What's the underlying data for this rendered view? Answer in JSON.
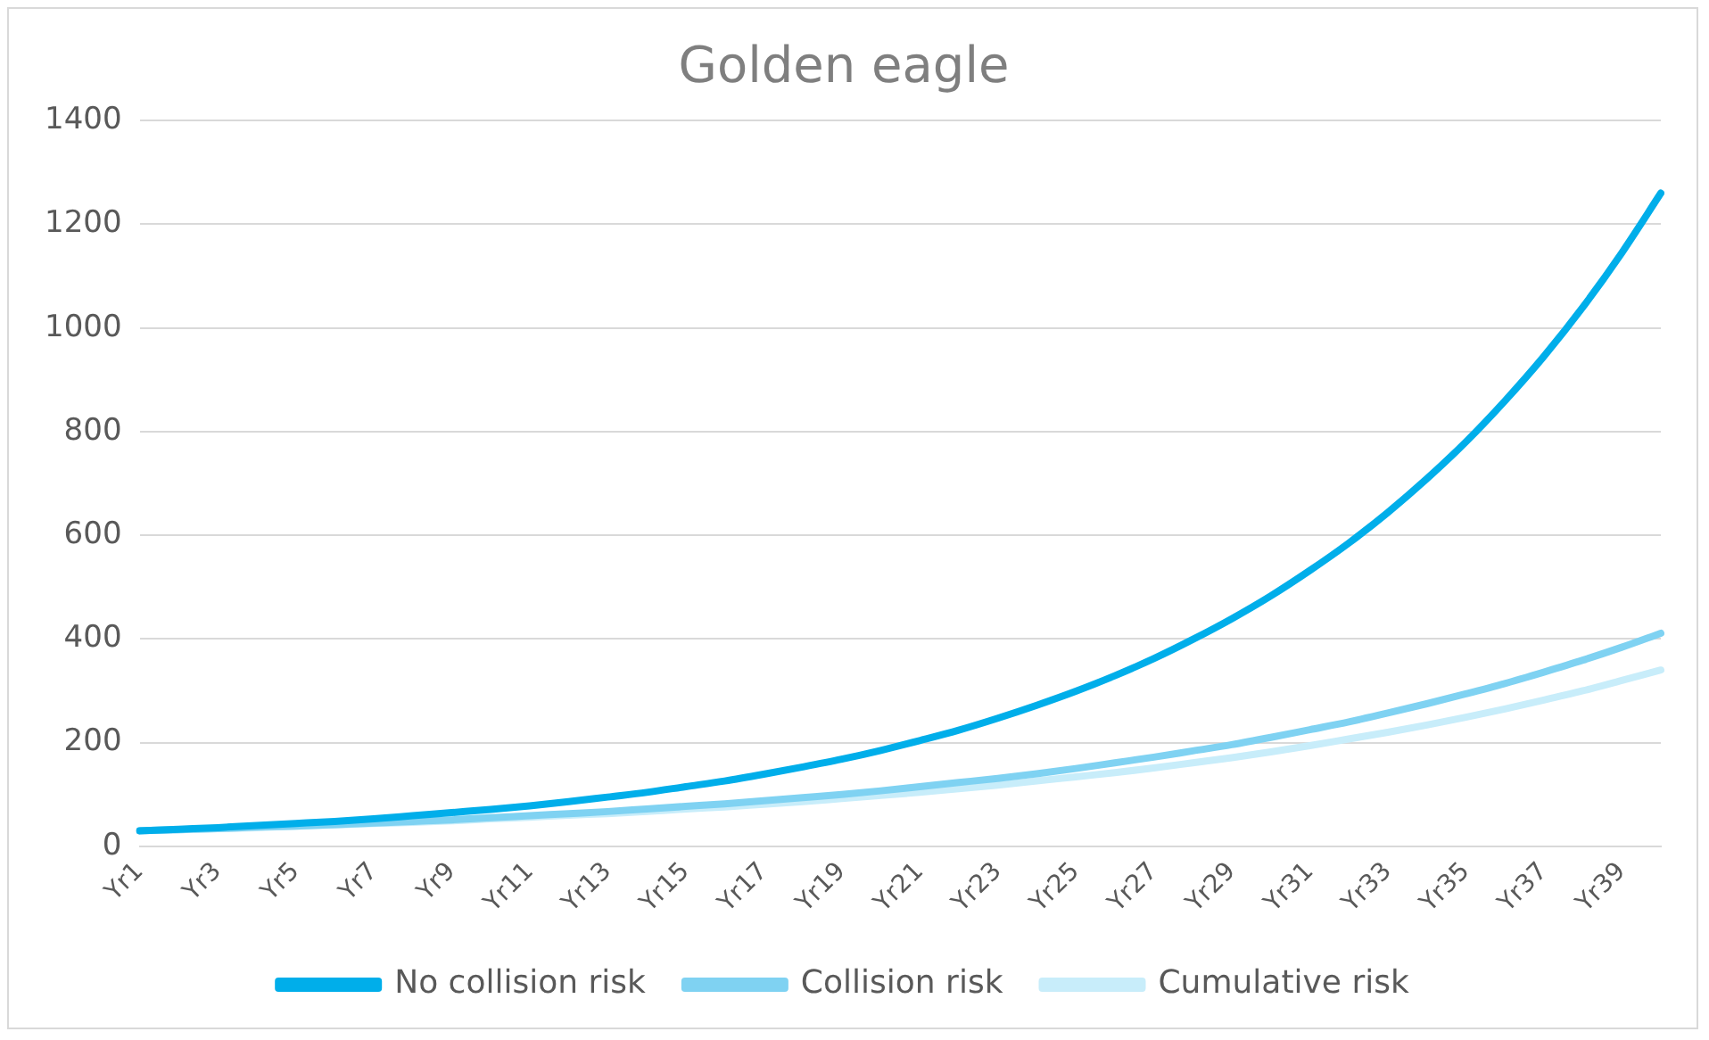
{
  "chart_data": {
    "type": "line",
    "title": "Golden eagle",
    "categories": [
      "Yr1",
      null,
      "Yr3",
      null,
      "Yr5",
      null,
      "Yr7",
      null,
      "Yr9",
      null,
      "Yr11",
      null,
      "Yr13",
      null,
      "Yr15",
      null,
      "Yr17",
      null,
      "Yr19",
      null,
      "Yr21",
      null,
      "Yr23",
      null,
      "Yr25",
      null,
      "Yr27",
      null,
      "Yr29",
      null,
      "Yr31",
      null,
      "Yr33",
      null,
      "Yr35",
      null,
      "Yr37",
      null,
      "Yr39",
      null
    ],
    "series": [
      {
        "name": "No collision risk",
        "color": "#00aeea",
        "values": [
          30,
          33,
          36,
          40,
          44,
          48,
          53,
          59,
          65,
          71,
          78,
          86,
          95,
          104,
          115,
          126,
          139,
          153,
          168,
          185,
          204,
          224,
          247,
          272,
          299,
          329,
          362,
          399,
          439,
          483,
          532,
          585,
          644,
          709,
          780,
          859,
          945,
          1040,
          1145,
          1260
        ]
      },
      {
        "name": "Collision risk",
        "color": "#7fd2f2",
        "values": [
          30,
          32,
          34,
          37,
          39,
          42,
          45,
          48,
          51,
          55,
          59,
          63,
          67,
          72,
          77,
          82,
          88,
          94,
          100,
          107,
          115,
          123,
          131,
          140,
          150,
          161,
          172,
          184,
          196,
          210,
          225,
          240,
          257,
          275,
          294,
          314,
          336,
          359,
          384,
          411
        ]
      },
      {
        "name": "Cumulative risk",
        "color": "#c8edfa",
        "values": [
          30,
          32,
          34,
          36,
          39,
          41,
          44,
          46,
          49,
          53,
          56,
          60,
          63,
          67,
          72,
          76,
          81,
          86,
          92,
          98,
          104,
          111,
          118,
          126,
          134,
          142,
          151,
          161,
          171,
          182,
          194,
          207,
          220,
          234,
          249,
          265,
          282,
          300,
          320,
          340
        ]
      }
    ],
    "ylim": [
      0,
      1400
    ],
    "yticks": [
      0,
      200,
      400,
      600,
      800,
      1000,
      1200,
      1400
    ],
    "grid": "y",
    "legend": "bottom",
    "marker": "none",
    "line_style": "solid"
  }
}
